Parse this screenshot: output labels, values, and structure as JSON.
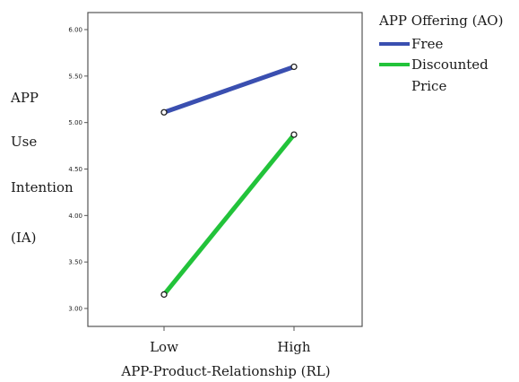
{
  "chart_data": {
    "type": "line",
    "title": "",
    "xlabel": "APP-Product-Relationship (RL)",
    "ylabel_lines": [
      "APP",
      "Use",
      "Intention",
      "(IA)"
    ],
    "categories": [
      "Low",
      "High"
    ],
    "ylim": [
      2.9,
      6.1
    ],
    "yticks": [
      "3.00",
      "3.50",
      "4.00",
      "4.50",
      "5.00",
      "5.50",
      "6.00"
    ],
    "legend_title": "APP Offering (AO)",
    "legend_placement": "top-right, outside plot",
    "grid": false,
    "series": [
      {
        "name": "Free",
        "legend_lines": [
          "Free"
        ],
        "color": "#3a4fb0",
        "values": [
          5.11,
          5.6
        ]
      },
      {
        "name": "Discounted Price",
        "legend_lines": [
          "Discounted",
          "Price"
        ],
        "color": "#22c33a",
        "values": [
          3.15,
          4.87
        ]
      }
    ]
  }
}
